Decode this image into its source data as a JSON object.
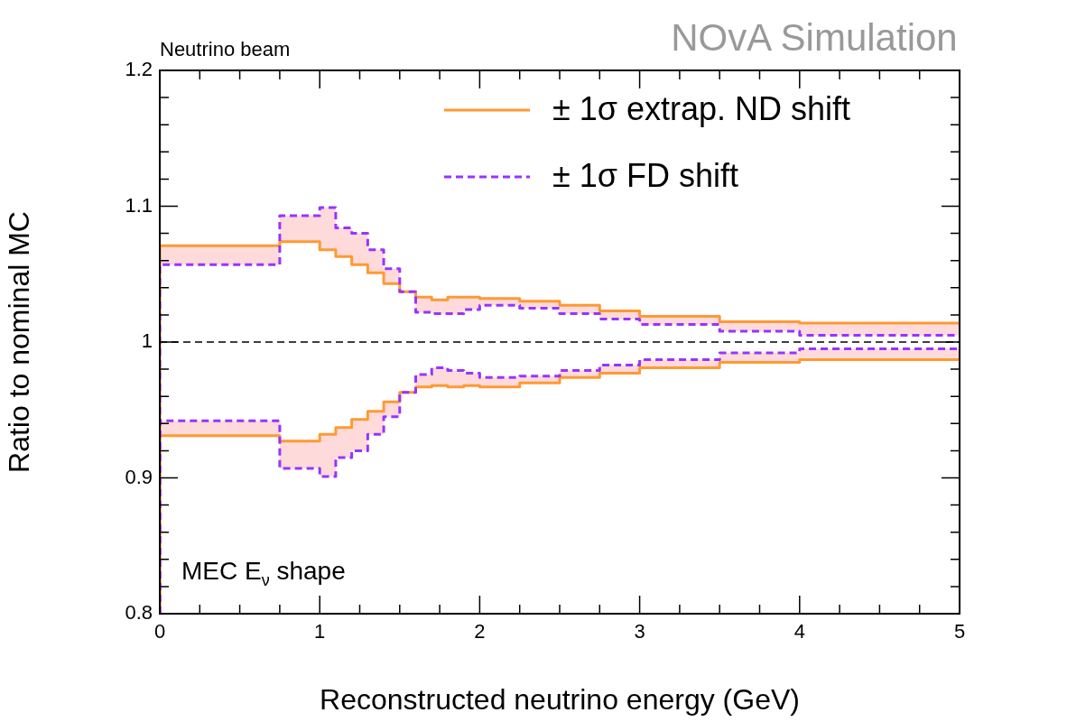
{
  "chart_data": {
    "type": "step",
    "xlabel": "Reconstructed neutrino energy (GeV)",
    "ylabel": "Ratio to nominal MC",
    "x": [
      0,
      0.75,
      1.0,
      1.1,
      1.2,
      1.3,
      1.4,
      1.5,
      1.6,
      1.7,
      1.8,
      1.9,
      2.0,
      2.25,
      2.5,
      2.75,
      3.0,
      3.5,
      4.0,
      5.0
    ],
    "series": [
      {
        "name": "± 1σ extrap. ND shift",
        "color": "#ff9933",
        "line_style": "solid",
        "values": [
          0.8,
          1.071,
          1.074,
          1.068,
          1.063,
          1.057,
          1.051,
          1.043,
          1.037,
          1.033,
          1.031,
          1.033,
          1.033,
          1.032,
          1.03,
          1.027,
          1.023,
          1.019,
          1.015,
          1.014
        ]
      },
      {
        "color": "#ff9933",
        "line_style": "solid",
        "values": [
          0.8,
          0.931,
          0.927,
          0.932,
          0.937,
          0.943,
          0.949,
          0.956,
          0.963,
          0.967,
          0.968,
          0.967,
          0.968,
          0.967,
          0.97,
          0.974,
          0.977,
          0.981,
          0.985,
          0.987
        ]
      },
      {
        "name": "± 1σ FD shift",
        "color": "#9933ff",
        "line_style": "dashed",
        "values": [
          0.8,
          1.057,
          1.093,
          1.099,
          1.084,
          1.08,
          1.068,
          1.054,
          1.037,
          1.022,
          1.021,
          1.021,
          1.024,
          1.027,
          1.025,
          1.021,
          1.017,
          1.013,
          1.008,
          1.005
        ]
      },
      {
        "color": "#9933ff",
        "line_style": "dashed",
        "values": [
          0.8,
          0.942,
          0.907,
          0.901,
          0.915,
          0.92,
          0.932,
          0.945,
          0.963,
          0.976,
          0.981,
          0.979,
          0.977,
          0.974,
          0.975,
          0.979,
          0.983,
          0.987,
          0.992,
          0.995
        ]
      }
    ],
    "xlim": [
      0,
      5
    ],
    "xticks": [
      0,
      {
        "value": 0.25,
        "label": null
      },
      {
        "value": 0.5,
        "label": null
      },
      {
        "value": 0.75,
        "label": null
      },
      1,
      {
        "value": 1.25,
        "label": null
      },
      {
        "value": 1.5,
        "label": null
      },
      {
        "value": 1.75,
        "label": null
      },
      2,
      {
        "value": 2.25,
        "label": null
      },
      {
        "value": 2.5,
        "label": null
      },
      {
        "value": 2.75,
        "label": null
      },
      3,
      {
        "value": 3.25,
        "label": null
      },
      {
        "value": 3.5,
        "label": null
      },
      {
        "value": 3.75,
        "label": null
      },
      4,
      {
        "value": 4.25,
        "label": null
      },
      {
        "value": 4.5,
        "label": null
      },
      {
        "value": 4.75,
        "label": null
      },
      5
    ],
    "ylim": [
      0.8,
      1.2
    ],
    "yticks": [
      0.8,
      {
        "value": 0.82,
        "label": null
      },
      {
        "value": 0.84,
        "label": null
      },
      {
        "value": 0.86,
        "label": null
      },
      {
        "value": 0.88,
        "label": null
      },
      0.9,
      {
        "value": 0.92,
        "label": null
      },
      {
        "value": 0.94,
        "label": null
      },
      {
        "value": 0.96,
        "label": null
      },
      {
        "value": 0.98,
        "label": null
      },
      {
        "value": 1,
        "label": "1"
      },
      {
        "value": 1.02,
        "label": null
      },
      {
        "value": 1.04,
        "label": null
      },
      {
        "value": 1.06,
        "label": null
      },
      {
        "value": 1.08,
        "label": null
      },
      1.1,
      {
        "value": 1.12,
        "label": null
      },
      {
        "value": 1.14,
        "label": null
      },
      {
        "value": 1.16,
        "label": null
      },
      {
        "value": 1.18,
        "label": null
      },
      1.2
    ],
    "ref_lines": [
      {
        "axis": "y",
        "value": 1,
        "color": "#000000",
        "line_style": "dashed"
      }
    ],
    "annotations": [
      "Neutrino beam",
      "NOvA Simulation",
      "MEC E$_{ν}$ shape"
    ],
    "legend": "top right",
    "grid": false,
    "marker": "none"
  }
}
